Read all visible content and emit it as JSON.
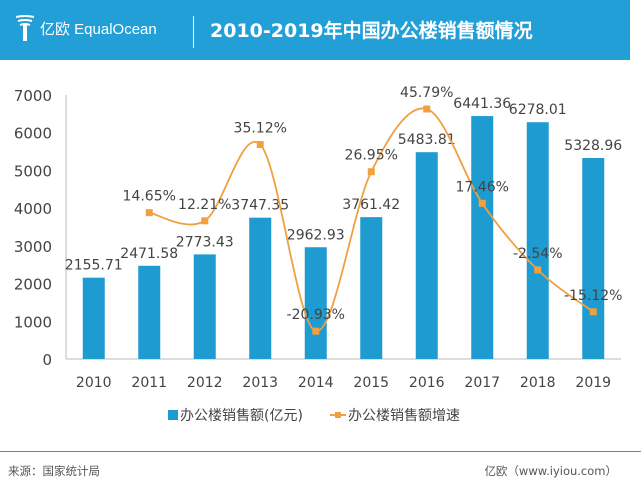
{
  "header": {
    "logo_text": "亿欧 EqualOcean",
    "title": "2010-2019年中国办公楼销售额情况"
  },
  "footer": {
    "source": "来源：国家统计局",
    "credit": "亿欧（www.iyiou.com）"
  },
  "colors": {
    "header": "#239fd7",
    "bar": "#1e9bd0",
    "line": "#f0a040"
  },
  "chart_data": {
    "type": "bar",
    "categories": [
      "2010",
      "2011",
      "2012",
      "2013",
      "2014",
      "2015",
      "2016",
      "2017",
      "2018",
      "2019"
    ],
    "series": [
      {
        "name": "办公楼销售额(亿元)",
        "type": "bar",
        "axis": "left",
        "values": [
          2155.71,
          2471.58,
          2773.43,
          3747.35,
          2962.93,
          3761.42,
          5483.81,
          6441.36,
          6278.01,
          5328.96
        ],
        "labels": [
          "2155.71",
          "2471.58",
          "2773.43",
          "3747.35",
          "2962.93",
          "3761.42",
          "5483.81",
          "6441.36",
          "6278.01",
          "5328.96"
        ]
      },
      {
        "name": "办公楼销售额增速",
        "type": "line",
        "axis": "right-hidden",
        "smooth": true,
        "values": [
          null,
          14.65,
          12.21,
          35.12,
          -20.93,
          26.95,
          45.79,
          17.46,
          -2.54,
          -15.12
        ],
        "labels": [
          "",
          "14.65%",
          "12.21%",
          "35.12%",
          "-20.93%",
          "26.95%",
          "45.79%",
          "17.46%",
          "-2.54%",
          "-15.12%"
        ]
      }
    ],
    "ylim": [
      0,
      7000
    ],
    "yticks": [
      "0",
      "1000",
      "2000",
      "3000",
      "4000",
      "5000",
      "6000",
      "7000"
    ],
    "y2lim": [
      -29.3,
      50
    ],
    "grid": false,
    "legend": "bottom"
  }
}
